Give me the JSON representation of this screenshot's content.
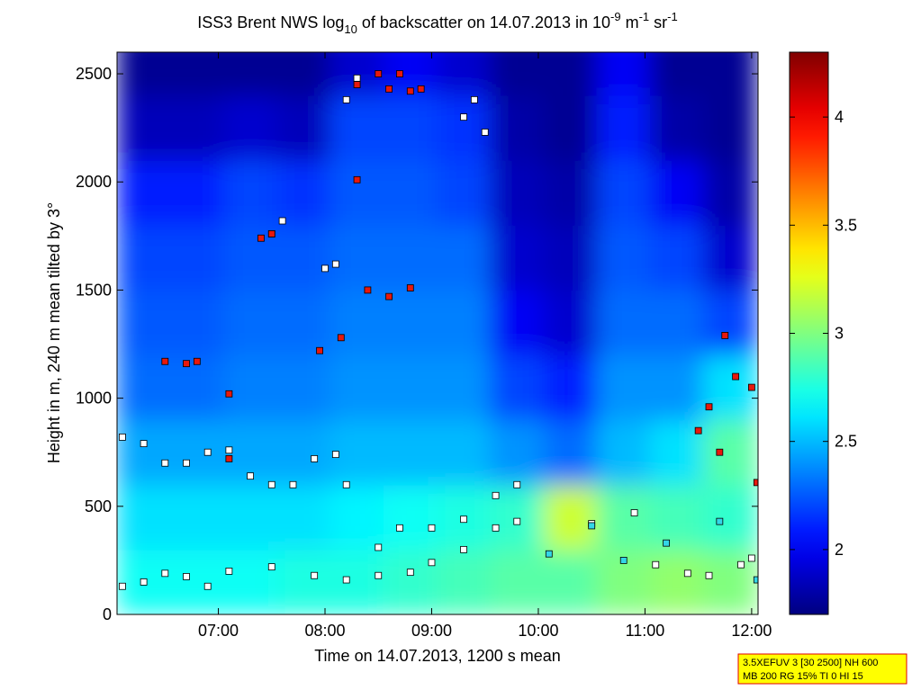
{
  "chart_data": {
    "type": "heatmap",
    "title_parts": [
      {
        "text": "ISS3 Brent NWS log",
        "position": "baseline"
      },
      {
        "text": "10",
        "position": "sub"
      },
      {
        "text": " of backscatter on 14.07.2013 in 10",
        "position": "baseline"
      },
      {
        "text": "-9",
        "position": "super"
      },
      {
        "text": " m",
        "position": "baseline"
      },
      {
        "text": "-1",
        "position": "super"
      },
      {
        "text": " sr",
        "position": "baseline"
      },
      {
        "text": "-1",
        "position": "super"
      }
    ],
    "x_label": "Time on 14.07.2013, 1200 s mean",
    "y_label": "Height in m, 240 m mean tilted by 3°",
    "xlim": [
      6.05,
      12.06
    ],
    "ylim": [
      0,
      2600
    ],
    "xticks": [
      {
        "value": 7,
        "label": "07:00"
      },
      {
        "value": 8,
        "label": "08:00"
      },
      {
        "value": 9,
        "label": "09:00"
      },
      {
        "value": 10,
        "label": "10:00"
      },
      {
        "value": 11,
        "label": "11:00"
      },
      {
        "value": 12,
        "label": "12:00"
      }
    ],
    "yticks": [
      0,
      500,
      1000,
      1500,
      2000,
      2500
    ],
    "x": [
      6.3,
      6.8,
      7.3,
      7.8,
      8.3,
      8.8,
      9.3,
      9.8,
      10.3,
      10.8,
      11.3,
      11.8
    ],
    "y": [
      150,
      450,
      750,
      1050,
      1350,
      1650,
      1950,
      2250,
      2550
    ],
    "z": [
      [
        2.7,
        2.7,
        2.7,
        2.75,
        2.75,
        2.8,
        2.85,
        2.9,
        2.9,
        3.0,
        3.05,
        3.0
      ],
      [
        2.6,
        2.6,
        2.6,
        2.6,
        2.65,
        2.7,
        2.75,
        2.8,
        3.2,
        2.9,
        2.85,
        2.8
      ],
      [
        2.45,
        2.45,
        2.45,
        2.45,
        2.5,
        2.5,
        2.5,
        2.4,
        2.3,
        2.5,
        2.6,
        2.9
      ],
      [
        2.3,
        2.3,
        2.35,
        2.35,
        2.4,
        2.4,
        2.4,
        2.2,
        2.1,
        2.4,
        2.4,
        2.6
      ],
      [
        2.25,
        2.25,
        2.3,
        2.3,
        2.35,
        2.35,
        2.35,
        2.0,
        1.9,
        2.3,
        2.3,
        2.2
      ],
      [
        2.2,
        2.2,
        2.25,
        2.25,
        2.3,
        2.3,
        2.3,
        1.9,
        1.85,
        2.25,
        2.2,
        1.9
      ],
      [
        2.1,
        2.1,
        2.2,
        2.15,
        2.25,
        2.25,
        2.2,
        1.85,
        1.8,
        2.2,
        2.0,
        1.8
      ],
      [
        1.85,
        1.85,
        1.9,
        1.85,
        2.2,
        2.2,
        2.15,
        1.8,
        1.75,
        2.1,
        1.8,
        1.75
      ],
      [
        1.75,
        1.75,
        1.75,
        1.75,
        1.9,
        2.0,
        1.9,
        1.75,
        1.75,
        2.0,
        1.75,
        1.75
      ]
    ],
    "colorbar": {
      "colormap": "jet",
      "lim": [
        1.7,
        4.3
      ],
      "ticks": [
        2,
        2.5,
        3,
        3.5,
        4
      ]
    },
    "overlays": [
      {
        "type": "scatter",
        "marker": "square",
        "color": "#ffffff",
        "x": [
          6.1,
          6.3,
          6.5,
          6.7,
          6.9,
          7.1,
          7.5,
          7.9,
          8.2,
          8.5,
          8.8,
          9.0,
          9.3,
          9.6,
          9.8,
          10.5,
          10.9,
          11.1,
          11.4,
          11.6,
          11.9,
          12.0,
          6.1,
          6.3,
          6.5,
          6.7,
          6.9,
          7.1,
          7.3,
          7.5,
          7.7,
          7.9,
          8.1,
          8.2,
          8.5,
          8.7,
          9.0,
          9.3,
          9.6,
          9.8,
          8.3,
          8.2,
          9.3,
          9.4,
          9.5,
          7.5,
          7.6,
          8.0,
          8.1
        ],
        "values": [
          130,
          150,
          190,
          175,
          130,
          200,
          220,
          180,
          160,
          180,
          195,
          240,
          300,
          400,
          430,
          420,
          470,
          230,
          190,
          180,
          230,
          260,
          820,
          790,
          700,
          700,
          750,
          760,
          640,
          600,
          600,
          720,
          740,
          600,
          310,
          400,
          400,
          440,
          550,
          600,
          2480,
          2380,
          2300,
          2380,
          2230,
          1760,
          1820,
          1600,
          1620
        ]
      },
      {
        "type": "scatter",
        "marker": "square",
        "color": "#e8180c",
        "x": [
          6.5,
          6.7,
          6.8,
          7.1,
          7.1,
          7.4,
          7.5,
          8.3,
          7.95,
          8.15,
          8.3,
          8.5,
          8.6,
          8.7,
          8.8,
          8.9,
          8.4,
          8.6,
          8.8,
          11.5,
          11.6,
          11.75,
          11.85,
          12.0,
          11.7,
          12.05
        ],
        "values": [
          1170,
          1160,
          1170,
          1020,
          720,
          1740,
          1760,
          2010,
          1220,
          1280,
          2450,
          2500,
          2430,
          2500,
          2420,
          2430,
          1500,
          1470,
          1510,
          850,
          960,
          1290,
          1100,
          1050,
          750,
          610
        ]
      },
      {
        "type": "scatter",
        "marker": "square",
        "color": "#33d6e8",
        "x": [
          10.5,
          10.8,
          11.2,
          11.7,
          12.05,
          10.1
        ],
        "values": [
          410,
          250,
          330,
          430,
          160,
          280
        ]
      }
    ],
    "annotation": [
      "3.5XEFUV 3 [30 2500] NH 600",
      "MB 200 RG 15% TI 0 HI 15"
    ]
  }
}
